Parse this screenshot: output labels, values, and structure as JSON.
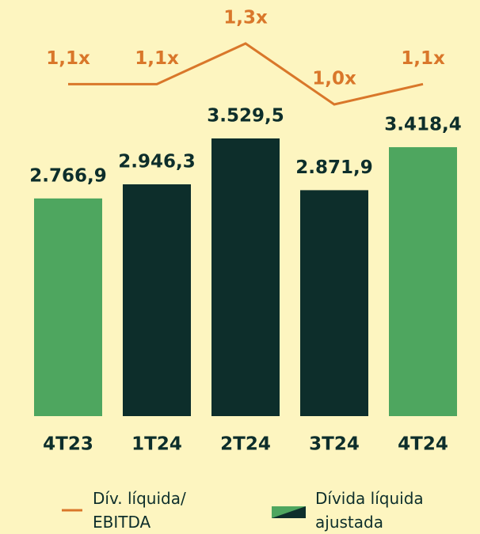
{
  "chart_data": {
    "type": "bar_line",
    "categories": [
      "4T23",
      "1T24",
      "2T24",
      "3T24",
      "4T24"
    ],
    "series": [
      {
        "name": "Dív. líquida/ EBITDA",
        "type": "line",
        "color": "#d9772a",
        "values": [
          1.1,
          1.1,
          1.3,
          1.0,
          1.1
        ],
        "value_labels": [
          "1,1x",
          "1,1x",
          "1,3x",
          "1,0x",
          "1,1x"
        ]
      },
      {
        "name": "Dívida líquida ajustada",
        "type": "bar",
        "color": "#4ea65f",
        "colors": [
          "#4ea65f",
          "#0d2e2b",
          "#0d2e2b",
          "#0d2e2b",
          "#4ea65f"
        ],
        "values": [
          2766.9,
          2946.3,
          3529.5,
          2871.9,
          3418.4
        ],
        "value_labels": [
          "2.766,9",
          "2.946,3",
          "3.529,5",
          "2.871,9",
          "3.418,4"
        ]
      }
    ]
  }
}
